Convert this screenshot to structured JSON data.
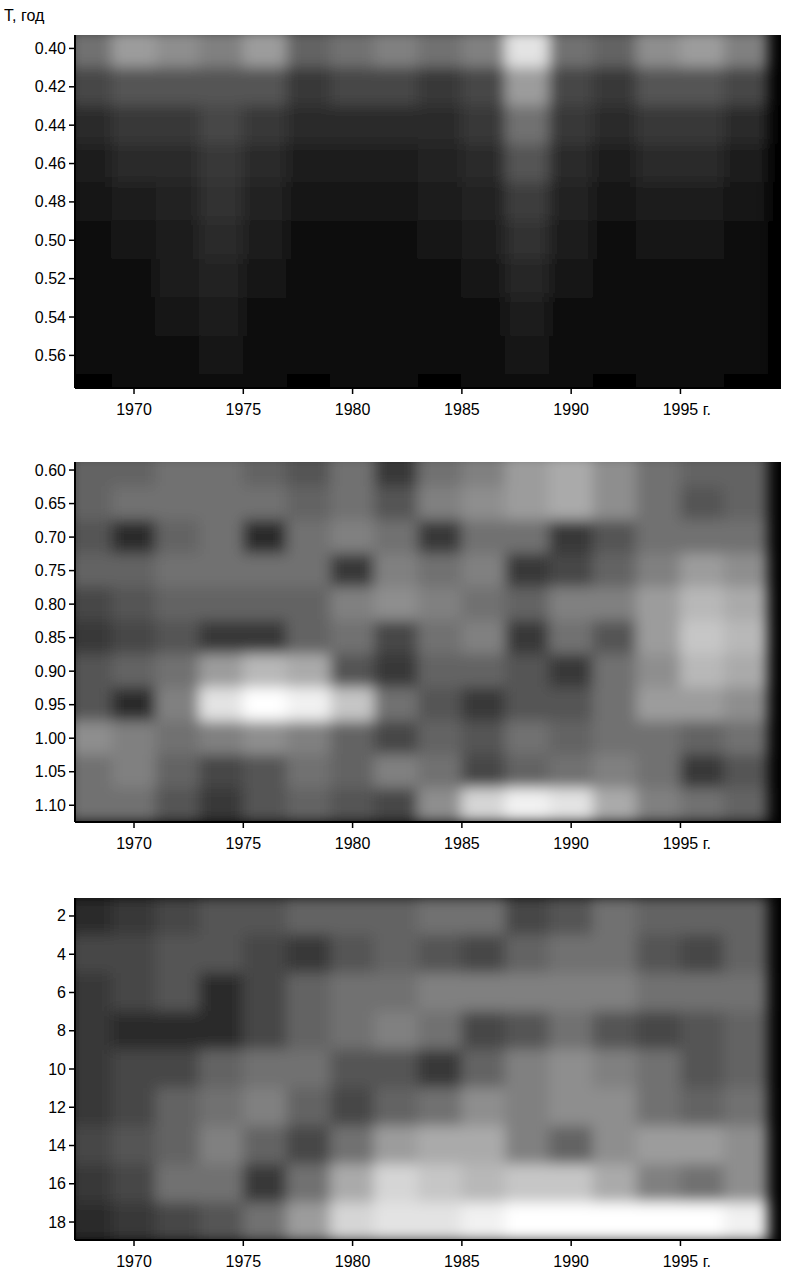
{
  "chart_data": [
    {
      "type": "heatmap",
      "y_label": "T, год",
      "x": [
        1968,
        1970,
        1972,
        1974,
        1976,
        1978,
        1980,
        1982,
        1984,
        1986,
        1988,
        1990,
        1992,
        1994,
        1996,
        1998
      ],
      "y": [
        0.4,
        0.42,
        0.44,
        0.46,
        0.48,
        0.5,
        0.52,
        0.54,
        0.56,
        0.58
      ],
      "cells": [
        [
          40,
          55,
          50,
          45,
          55,
          35,
          40,
          45,
          40,
          45,
          80,
          40,
          35,
          50,
          55,
          45
        ],
        [
          25,
          30,
          30,
          30,
          30,
          20,
          25,
          25,
          20,
          25,
          55,
          25,
          20,
          30,
          30,
          25
        ],
        [
          15,
          20,
          20,
          25,
          20,
          15,
          15,
          15,
          15,
          20,
          40,
          20,
          15,
          20,
          20,
          15
        ],
        [
          10,
          15,
          15,
          20,
          15,
          10,
          10,
          10,
          12,
          15,
          30,
          15,
          10,
          15,
          15,
          10
        ],
        [
          8,
          10,
          12,
          18,
          12,
          8,
          8,
          8,
          10,
          12,
          22,
          12,
          8,
          10,
          10,
          8
        ],
        [
          6,
          8,
          10,
          15,
          10,
          6,
          6,
          6,
          8,
          10,
          18,
          10,
          6,
          8,
          8,
          6
        ],
        [
          5,
          6,
          10,
          12,
          8,
          5,
          5,
          6,
          6,
          8,
          14,
          8,
          5,
          6,
          6,
          5
        ],
        [
          4,
          5,
          8,
          10,
          6,
          4,
          5,
          5,
          4,
          6,
          10,
          6,
          4,
          5,
          5,
          4
        ],
        [
          3,
          4,
          6,
          8,
          5,
          3,
          4,
          4,
          3,
          5,
          8,
          5,
          3,
          4,
          4,
          3
        ],
        [
          2,
          3,
          4,
          5,
          4,
          2,
          3,
          3,
          2,
          4,
          6,
          4,
          2,
          3,
          3,
          2
        ]
      ],
      "xlim": [
        1967.3,
        1999.6
      ],
      "xticks": [
        1970,
        1975,
        1980,
        1985,
        1990,
        {
          "value": 1995,
          "label": "1995 г."
        }
      ],
      "ylim": [
        0.393,
        0.577
      ],
      "yticks": [
        {
          "value": 0.4,
          "label": "0.40"
        },
        {
          "value": 0.42,
          "label": "0.42"
        },
        {
          "value": 0.44,
          "label": "0.44"
        },
        {
          "value": 0.46,
          "label": "0.46"
        },
        {
          "value": 0.48,
          "label": "0.48"
        },
        {
          "value": 0.5,
          "label": "0.50"
        },
        {
          "value": 0.52,
          "label": "0.52"
        },
        {
          "value": 0.54,
          "label": "0.54"
        },
        {
          "value": 0.56,
          "label": "0.56"
        }
      ]
    },
    {
      "type": "heatmap",
      "x": [
        1968,
        1970,
        1972,
        1974,
        1976,
        1978,
        1980,
        1982,
        1984,
        1986,
        1988,
        1990,
        1992,
        1994,
        1996,
        1998
      ],
      "y": [
        0.6,
        0.65,
        0.7,
        0.75,
        0.8,
        0.85,
        0.9,
        0.95,
        1.0,
        1.05,
        1.1
      ],
      "cells": [
        [
          35,
          35,
          40,
          40,
          35,
          30,
          40,
          20,
          40,
          45,
          55,
          60,
          50,
          40,
          35,
          35
        ],
        [
          35,
          40,
          40,
          40,
          40,
          35,
          40,
          30,
          45,
          50,
          55,
          60,
          50,
          40,
          30,
          35
        ],
        [
          30,
          15,
          35,
          40,
          15,
          40,
          45,
          40,
          20,
          40,
          40,
          20,
          30,
          40,
          40,
          40
        ],
        [
          35,
          35,
          40,
          40,
          40,
          40,
          20,
          45,
          40,
          45,
          20,
          25,
          35,
          45,
          55,
          50
        ],
        [
          25,
          30,
          35,
          35,
          35,
          35,
          45,
          50,
          45,
          40,
          35,
          45,
          45,
          55,
          65,
          60
        ],
        [
          20,
          25,
          30,
          20,
          20,
          35,
          40,
          25,
          40,
          45,
          20,
          40,
          30,
          55,
          70,
          65
        ],
        [
          30,
          35,
          40,
          55,
          65,
          60,
          30,
          20,
          35,
          35,
          30,
          20,
          40,
          50,
          65,
          60
        ],
        [
          30,
          15,
          45,
          80,
          90,
          85,
          70,
          40,
          30,
          20,
          30,
          30,
          40,
          55,
          55,
          50
        ],
        [
          50,
          45,
          40,
          45,
          50,
          45,
          35,
          25,
          35,
          30,
          40,
          35,
          40,
          40,
          35,
          40
        ],
        [
          40,
          45,
          35,
          25,
          30,
          40,
          35,
          45,
          40,
          25,
          35,
          40,
          45,
          40,
          20,
          30
        ],
        [
          40,
          40,
          30,
          20,
          30,
          35,
          30,
          25,
          50,
          75,
          85,
          80,
          60,
          45,
          40,
          35
        ]
      ],
      "xlim": [
        1967.3,
        1999.6
      ],
      "xticks": [
        1970,
        1975,
        1980,
        1985,
        1990,
        {
          "value": 1995,
          "label": "1995 г."
        }
      ],
      "ylim": [
        0.588,
        1.125
      ],
      "yticks": [
        {
          "value": 0.6,
          "label": "0.60"
        },
        {
          "value": 0.65,
          "label": "0.65"
        },
        {
          "value": 0.7,
          "label": "0.70"
        },
        {
          "value": 0.75,
          "label": "0.75"
        },
        {
          "value": 0.8,
          "label": "0.80"
        },
        {
          "value": 0.85,
          "label": "0.85"
        },
        {
          "value": 0.9,
          "label": "0.90"
        },
        {
          "value": 0.95,
          "label": "0.95"
        },
        {
          "value": 1.0,
          "label": "1.00"
        },
        {
          "value": 1.05,
          "label": "1.05"
        },
        {
          "value": 1.1,
          "label": "1.10"
        }
      ]
    },
    {
      "type": "heatmap",
      "x": [
        1968,
        1970,
        1972,
        1974,
        1976,
        1978,
        1980,
        1982,
        1984,
        1986,
        1988,
        1990,
        1992,
        1994,
        1996,
        1998
      ],
      "y": [
        2,
        4,
        6,
        8,
        10,
        12,
        14,
        16,
        18
      ],
      "cells": [
        [
          15,
          20,
          25,
          30,
          30,
          35,
          35,
          35,
          40,
          40,
          25,
          30,
          40,
          35,
          35,
          35
        ],
        [
          25,
          25,
          30,
          30,
          25,
          20,
          30,
          35,
          30,
          25,
          35,
          40,
          40,
          30,
          25,
          35
        ],
        [
          20,
          25,
          30,
          15,
          25,
          35,
          40,
          40,
          45,
          45,
          45,
          45,
          45,
          40,
          40,
          40
        ],
        [
          20,
          15,
          15,
          15,
          25,
          35,
          40,
          45,
          40,
          25,
          30,
          40,
          30,
          25,
          30,
          35
        ],
        [
          20,
          25,
          25,
          35,
          40,
          40,
          30,
          30,
          20,
          35,
          45,
          50,
          45,
          40,
          30,
          35
        ],
        [
          20,
          25,
          35,
          40,
          45,
          35,
          25,
          35,
          40,
          50,
          45,
          50,
          50,
          40,
          35,
          40
        ],
        [
          25,
          30,
          35,
          45,
          35,
          25,
          40,
          55,
          60,
          60,
          45,
          35,
          50,
          55,
          55,
          50
        ],
        [
          20,
          25,
          40,
          40,
          20,
          40,
          60,
          75,
          70,
          65,
          70,
          70,
          60,
          45,
          40,
          50
        ],
        [
          15,
          20,
          25,
          30,
          40,
          55,
          75,
          80,
          80,
          85,
          90,
          90,
          90,
          90,
          90,
          85
        ]
      ],
      "xlim": [
        1967.3,
        1999.6
      ],
      "xticks": [
        1970,
        1975,
        1980,
        1985,
        1990,
        {
          "value": 1995,
          "label": "1995 г."
        }
      ],
      "ylim": [
        1.06,
        18.94
      ],
      "yticks": [
        2,
        4,
        6,
        8,
        10,
        12,
        14,
        16,
        18
      ]
    }
  ]
}
